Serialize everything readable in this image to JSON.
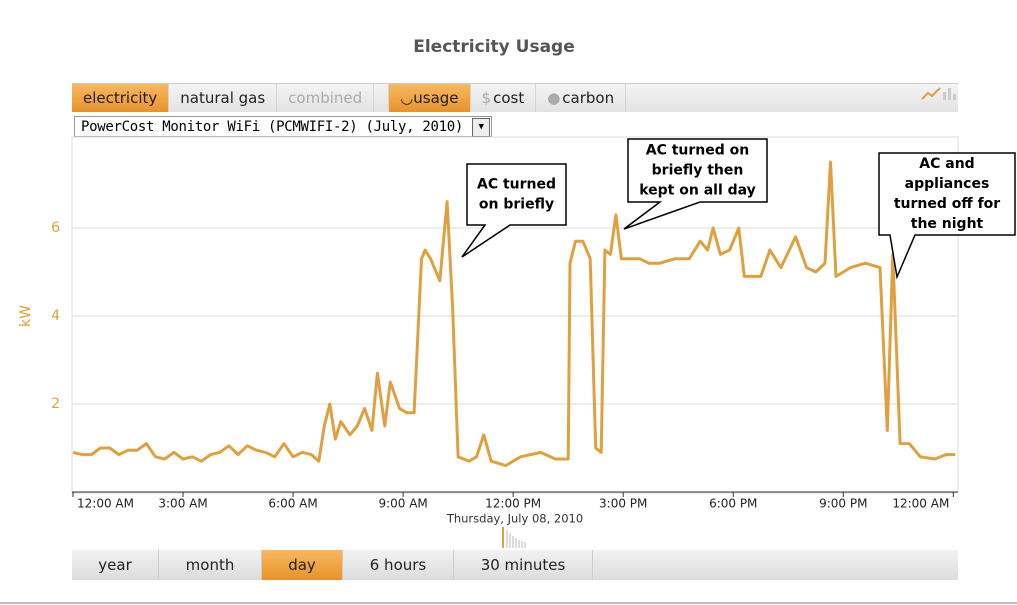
{
  "title": "Electricity Usage",
  "tabs": [
    "electricity",
    "natural gas",
    "combined"
  ],
  "view_tabs": [
    {
      "label": "usage"
    },
    {
      "icon": "$",
      "label": "cost"
    },
    {
      "label": "carbon"
    }
  ],
  "dropdown": "PowerCost Monitor WiFi (PCMWIFI-2) (July, 2010)",
  "time_buttons": [
    "year",
    "month",
    "day",
    "6 hours",
    "30 minutes"
  ],
  "chart_data": {
    "type": "line",
    "ylabel": "kW",
    "xlabel": "Thursday, July 08, 2010",
    "color": "#e0a040",
    "grid": true,
    "xlim": [
      0,
      24.1
    ],
    "ylim": [
      0,
      8
    ],
    "yticks": [
      2,
      4,
      6
    ],
    "xticks": [
      {
        "value": 0,
        "label": "12:00 AM"
      },
      {
        "value": 3,
        "label": "3:00 AM"
      },
      {
        "value": 6,
        "label": "6:00 AM"
      },
      {
        "value": 9,
        "label": "9:00 AM"
      },
      {
        "value": 12,
        "label": "12:00 PM"
      },
      {
        "value": 15,
        "label": "3:00 PM"
      },
      {
        "value": 18,
        "label": "6:00 PM"
      },
      {
        "value": 21,
        "label": "9:00 PM"
      },
      {
        "value": 24,
        "label": "12:00 AM"
      }
    ],
    "x": [
      0,
      0.25,
      0.5,
      0.75,
      1.0,
      1.25,
      1.5,
      1.75,
      2.0,
      2.25,
      2.5,
      2.75,
      3.0,
      3.25,
      3.5,
      3.75,
      4.0,
      4.25,
      4.5,
      4.75,
      5.0,
      5.25,
      5.5,
      5.75,
      6.0,
      6.25,
      6.5,
      6.7,
      6.85,
      7.0,
      7.15,
      7.3,
      7.55,
      7.75,
      7.95,
      8.15,
      8.3,
      8.5,
      8.65,
      8.9,
      9.1,
      9.3,
      9.5,
      9.6,
      9.75,
      10.0,
      10.2,
      10.35,
      10.5,
      10.8,
      11.0,
      11.2,
      11.4,
      11.8,
      12.2,
      12.75,
      13.15,
      13.5,
      13.55,
      13.7,
      13.9,
      14.1,
      14.25,
      14.4,
      14.5,
      14.65,
      14.8,
      14.95,
      15.45,
      15.7,
      16.0,
      16.4,
      16.8,
      17.1,
      17.3,
      17.45,
      17.65,
      17.9,
      18.15,
      18.3,
      18.75,
      19.0,
      19.3,
      19.7,
      20.0,
      20.25,
      20.5,
      20.65,
      20.8,
      21.2,
      21.6,
      22.0,
      22.2,
      22.35,
      22.55,
      22.8,
      23.1,
      23.5,
      23.8,
      24.05
    ],
    "values": [
      0.9,
      0.85,
      0.85,
      1.0,
      1.0,
      0.85,
      0.95,
      0.95,
      1.1,
      0.8,
      0.75,
      0.9,
      0.75,
      0.8,
      0.7,
      0.85,
      0.9,
      1.05,
      0.85,
      1.05,
      0.95,
      0.9,
      0.8,
      1.1,
      0.8,
      0.9,
      0.85,
      0.7,
      1.5,
      2.0,
      1.2,
      1.6,
      1.3,
      1.5,
      1.9,
      1.4,
      2.7,
      1.5,
      2.5,
      1.9,
      1.8,
      1.8,
      5.3,
      5.5,
      5.3,
      4.8,
      6.6,
      4.2,
      0.8,
      0.7,
      0.8,
      1.3,
      0.7,
      0.6,
      0.8,
      0.9,
      0.75,
      0.75,
      5.2,
      5.7,
      5.7,
      5.3,
      1.0,
      0.9,
      5.5,
      5.4,
      6.3,
      5.3,
      5.3,
      5.2,
      5.2,
      5.3,
      5.3,
      5.7,
      5.5,
      6.0,
      5.4,
      5.5,
      6.0,
      4.9,
      4.9,
      5.5,
      5.1,
      5.8,
      5.1,
      5.0,
      5.2,
      7.5,
      4.9,
      5.1,
      5.2,
      5.1,
      1.4,
      5.4,
      1.1,
      1.1,
      0.8,
      0.75,
      0.85,
      0.85
    ],
    "annotations": [
      {
        "lines": [
          "AC turned",
          "on briefly"
        ]
      },
      {
        "lines": [
          "AC turned on",
          "briefly then",
          "kept on all day"
        ]
      },
      {
        "lines": [
          "AC and",
          "appliances",
          "turned off for",
          "the night"
        ]
      }
    ]
  }
}
